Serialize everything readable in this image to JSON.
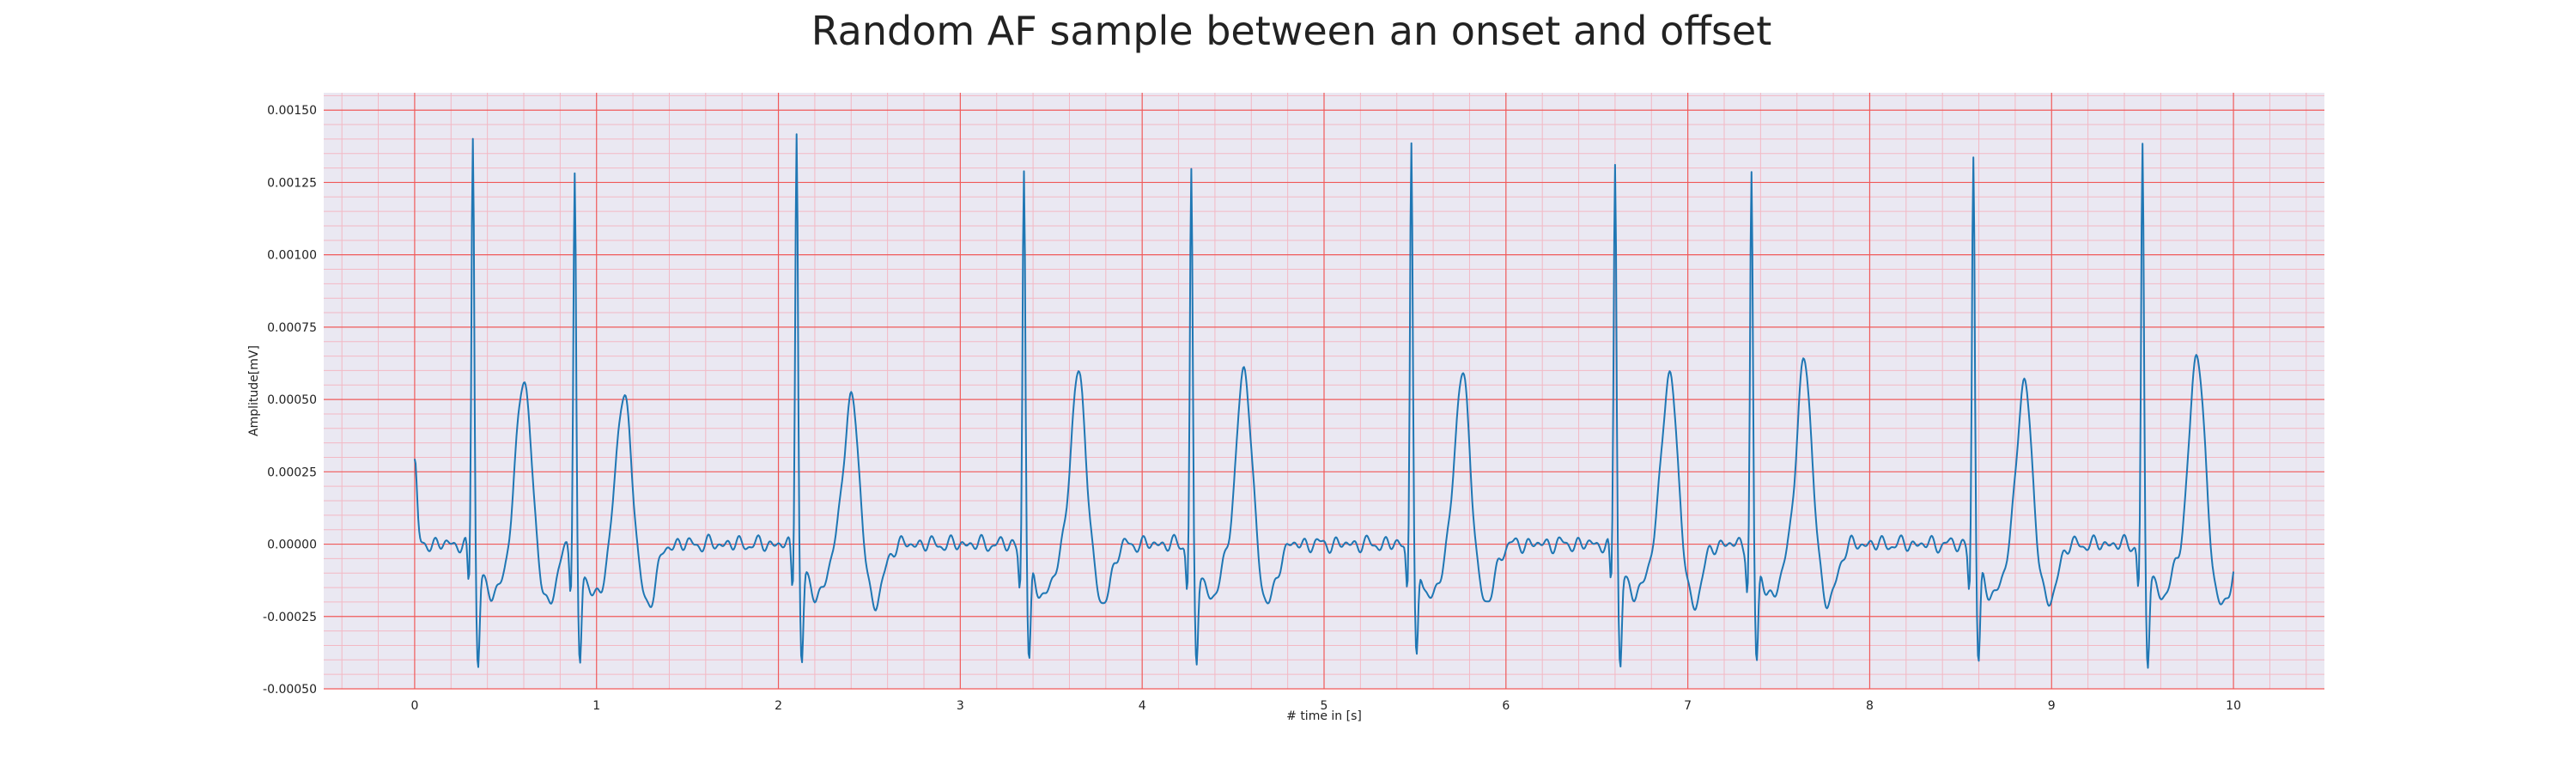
{
  "chart_data": {
    "type": "line",
    "title": "Random AF sample between an onset and offset",
    "xlabel": "# time in [s]",
    "ylabel": "Amplitude[mV]",
    "xlim": [
      -0.5,
      10.5
    ],
    "ylim": [
      -0.0005,
      0.00156
    ],
    "xticks": [
      0,
      1,
      2,
      3,
      4,
      5,
      6,
      7,
      8,
      9,
      10
    ],
    "xtick_labels": [
      "0",
      "1",
      "2",
      "3",
      "4",
      "5",
      "6",
      "7",
      "8",
      "9",
      "10"
    ],
    "yticks": [
      -0.0005,
      -0.00025,
      0.0,
      0.00025,
      0.0005,
      0.00075,
      0.001,
      0.00125,
      0.0015
    ],
    "ytick_labels": [
      "-0.00050",
      "-0.00025",
      "0.00000",
      "0.00025",
      "0.00050",
      "0.00075",
      "0.00100",
      "0.00125",
      "0.00150"
    ],
    "grid": true,
    "grid_color": "#f05a5a",
    "minor_grid_color": "#f3b8c4",
    "background_color": "#eae8f2",
    "line_color": "#1f77b4",
    "r_peaks": [
      {
        "t": 0.32,
        "amp": 0.00144
      },
      {
        "t": 0.88,
        "amp": 0.00132
      },
      {
        "t": 2.1,
        "amp": 0.00147
      },
      {
        "t": 3.35,
        "amp": 0.00132
      },
      {
        "t": 4.27,
        "amp": 0.00131
      },
      {
        "t": 5.48,
        "amp": 0.00143
      },
      {
        "t": 6.6,
        "amp": 0.00135
      },
      {
        "t": 7.35,
        "amp": 0.0013
      },
      {
        "t": 8.57,
        "amp": 0.00136
      },
      {
        "t": 9.5,
        "amp": 0.00139
      }
    ],
    "t_waves": [
      {
        "t": 0.6,
        "amp": 0.00036
      },
      {
        "t": 1.15,
        "amp": 0.00031
      },
      {
        "t": 2.4,
        "amp": 0.00029
      },
      {
        "t": 3.65,
        "amp": 0.00037
      },
      {
        "t": 4.56,
        "amp": 0.00038
      },
      {
        "t": 5.76,
        "amp": 0.00037
      },
      {
        "t": 6.9,
        "amp": 0.00038
      },
      {
        "t": 7.64,
        "amp": 0.00041
      },
      {
        "t": 8.85,
        "amp": 0.00034
      },
      {
        "t": 9.8,
        "amp": 0.00044
      }
    ],
    "series": [
      {
        "t_start": 0.0,
        "t_end": 10.0,
        "start_value": 0.0001,
        "end_value": -7e-05
      }
    ]
  }
}
